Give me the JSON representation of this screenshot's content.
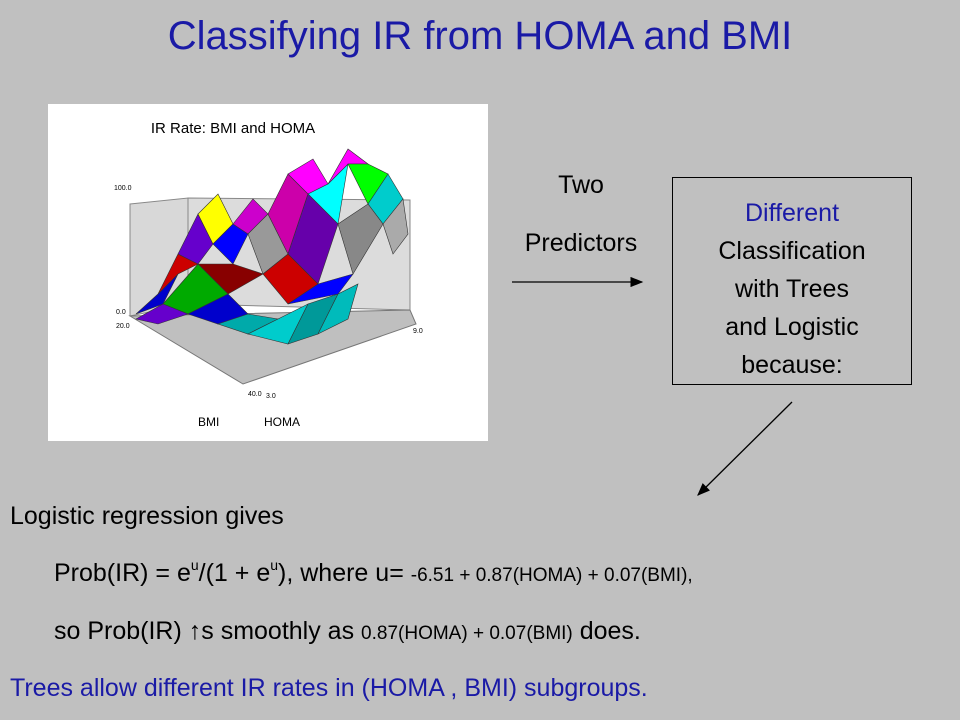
{
  "title": "Classifying IR from HOMA and BMI",
  "chart": {
    "title": "IR Rate: BMI and HOMA",
    "z_max_label": "100.0",
    "z_min_label": "0.0",
    "bmi_min_label": "20.0",
    "bmi_max_label": "40.0",
    "homa_min_label": "3.0",
    "homa_max_label": "9.0",
    "axis_bmi": "BMI",
    "axis_homa": "HOMA"
  },
  "arrow_text": {
    "line1": "Two",
    "line2": "Predictors"
  },
  "box": {
    "line1": "Different",
    "line2": "Classification",
    "line3": "with Trees",
    "line4": "and Logistic",
    "line5": "because:"
  },
  "body": {
    "line1": "Logistic regression gives",
    "l2a": "Prob(IR) = e",
    "l2sup1": "u",
    "l2b": "/(1 + e",
    "l2sup2": "u",
    "l2c": "), where u=",
    "l2small": "-6.51 + 0.87(HOMA) + 0.07(BMI),",
    "l3a": "so Prob(IR) ↑s smoothly as",
    "l3small": "0.87(HOMA) + 0.07(BMI)",
    "l3b": "does.",
    "line4": "Trees allow different IR rates in (HOMA , BMI) subgroups."
  }
}
